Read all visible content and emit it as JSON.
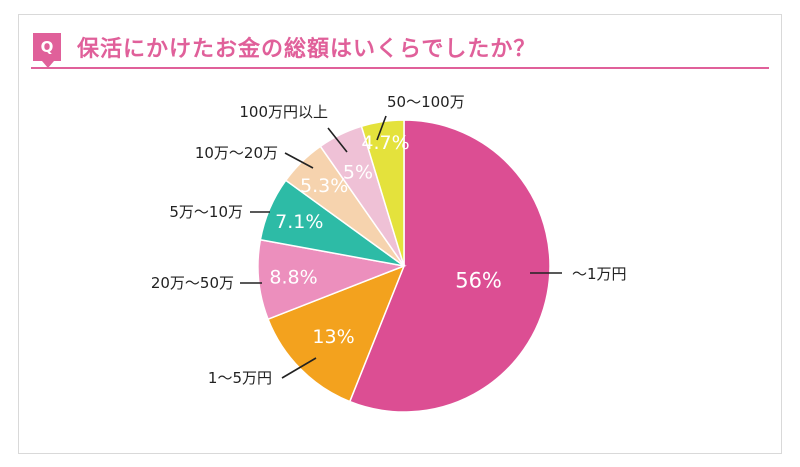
{
  "question": {
    "badge": "Q",
    "title": "保活にかけたお金の総額はいくらでしたか？"
  },
  "colors": {
    "accent": "#e0609a"
  },
  "chart_data": {
    "type": "pie",
    "title": "保活にかけたお金の総額はいくらでしたか？",
    "slices": [
      {
        "label": "～1万円",
        "value": 56,
        "display": "56%",
        "color": "#dc4e93",
        "text_color": "#ffffff"
      },
      {
        "label": "1～5万円",
        "value": 13,
        "display": "13%",
        "color": "#f3a21e",
        "text_color": "#ffffff"
      },
      {
        "label": "20万～50万",
        "value": 8.8,
        "display": "8.8%",
        "color": "#ec8fbd",
        "text_color": "#ffffff"
      },
      {
        "label": "5万～10万",
        "value": 7.1,
        "display": "7.1%",
        "color": "#2dbba6",
        "text_color": "#ffffff"
      },
      {
        "label": "10万～20万",
        "value": 5.3,
        "display": "5.3%",
        "color": "#f6d3ae",
        "text_color": "#ffffff"
      },
      {
        "label": "100万円以上",
        "value": 5,
        "display": "5%",
        "color": "#efc1d6",
        "text_color": "#ffffff"
      },
      {
        "label": "50～100万",
        "value": 4.7,
        "display": "4.7%",
        "color": "#e4e23c",
        "text_color": "#ffffff"
      }
    ]
  }
}
